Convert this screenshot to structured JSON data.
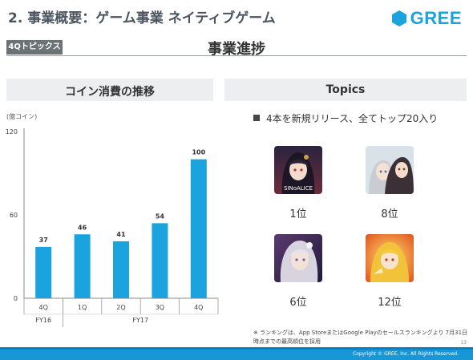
{
  "header": {
    "title": "2. 事業概要：ゲーム事業 ネイティブゲーム",
    "logo_text": "GREE",
    "brand_color": "#1aa3de"
  },
  "badge": "4Qトピックス",
  "page_heading": "事業進捗",
  "left_panel": {
    "title": "コイン消費の推移",
    "unit": "(億コイン)"
  },
  "right_panel": {
    "title": "Topics",
    "topic": "4本を新規リリース、全てトップ20入り",
    "games": [
      {
        "rank": "1位",
        "logo_text": "SINoALICE",
        "art": "dark-portrait"
      },
      {
        "rank": "8位",
        "art": "anime-pair"
      },
      {
        "rank": "6位",
        "art": "silver-hair"
      },
      {
        "rank": "12位",
        "art": "golden-hero"
      }
    ]
  },
  "chart_data": {
    "type": "bar",
    "categories": [
      "4Q",
      "1Q",
      "2Q",
      "3Q",
      "4Q"
    ],
    "groups": [
      {
        "label": "FY16",
        "span": 1
      },
      {
        "label": "FY17",
        "span": 4
      }
    ],
    "values": [
      37,
      46,
      41,
      54,
      100
    ],
    "ylim": [
      0,
      120
    ],
    "yticks": [
      0,
      60,
      120
    ],
    "bar_color": "#1aa3de",
    "ylabel": "(億コイン)",
    "grid": false
  },
  "footnote": "※ ランキングは、App StoreまたはGoogle Playのセールスランキングより 7月31日時点までの最高順位を採用",
  "page_number": "13",
  "copyright": "Copyright © GREE, Inc. All Rights Reserved."
}
